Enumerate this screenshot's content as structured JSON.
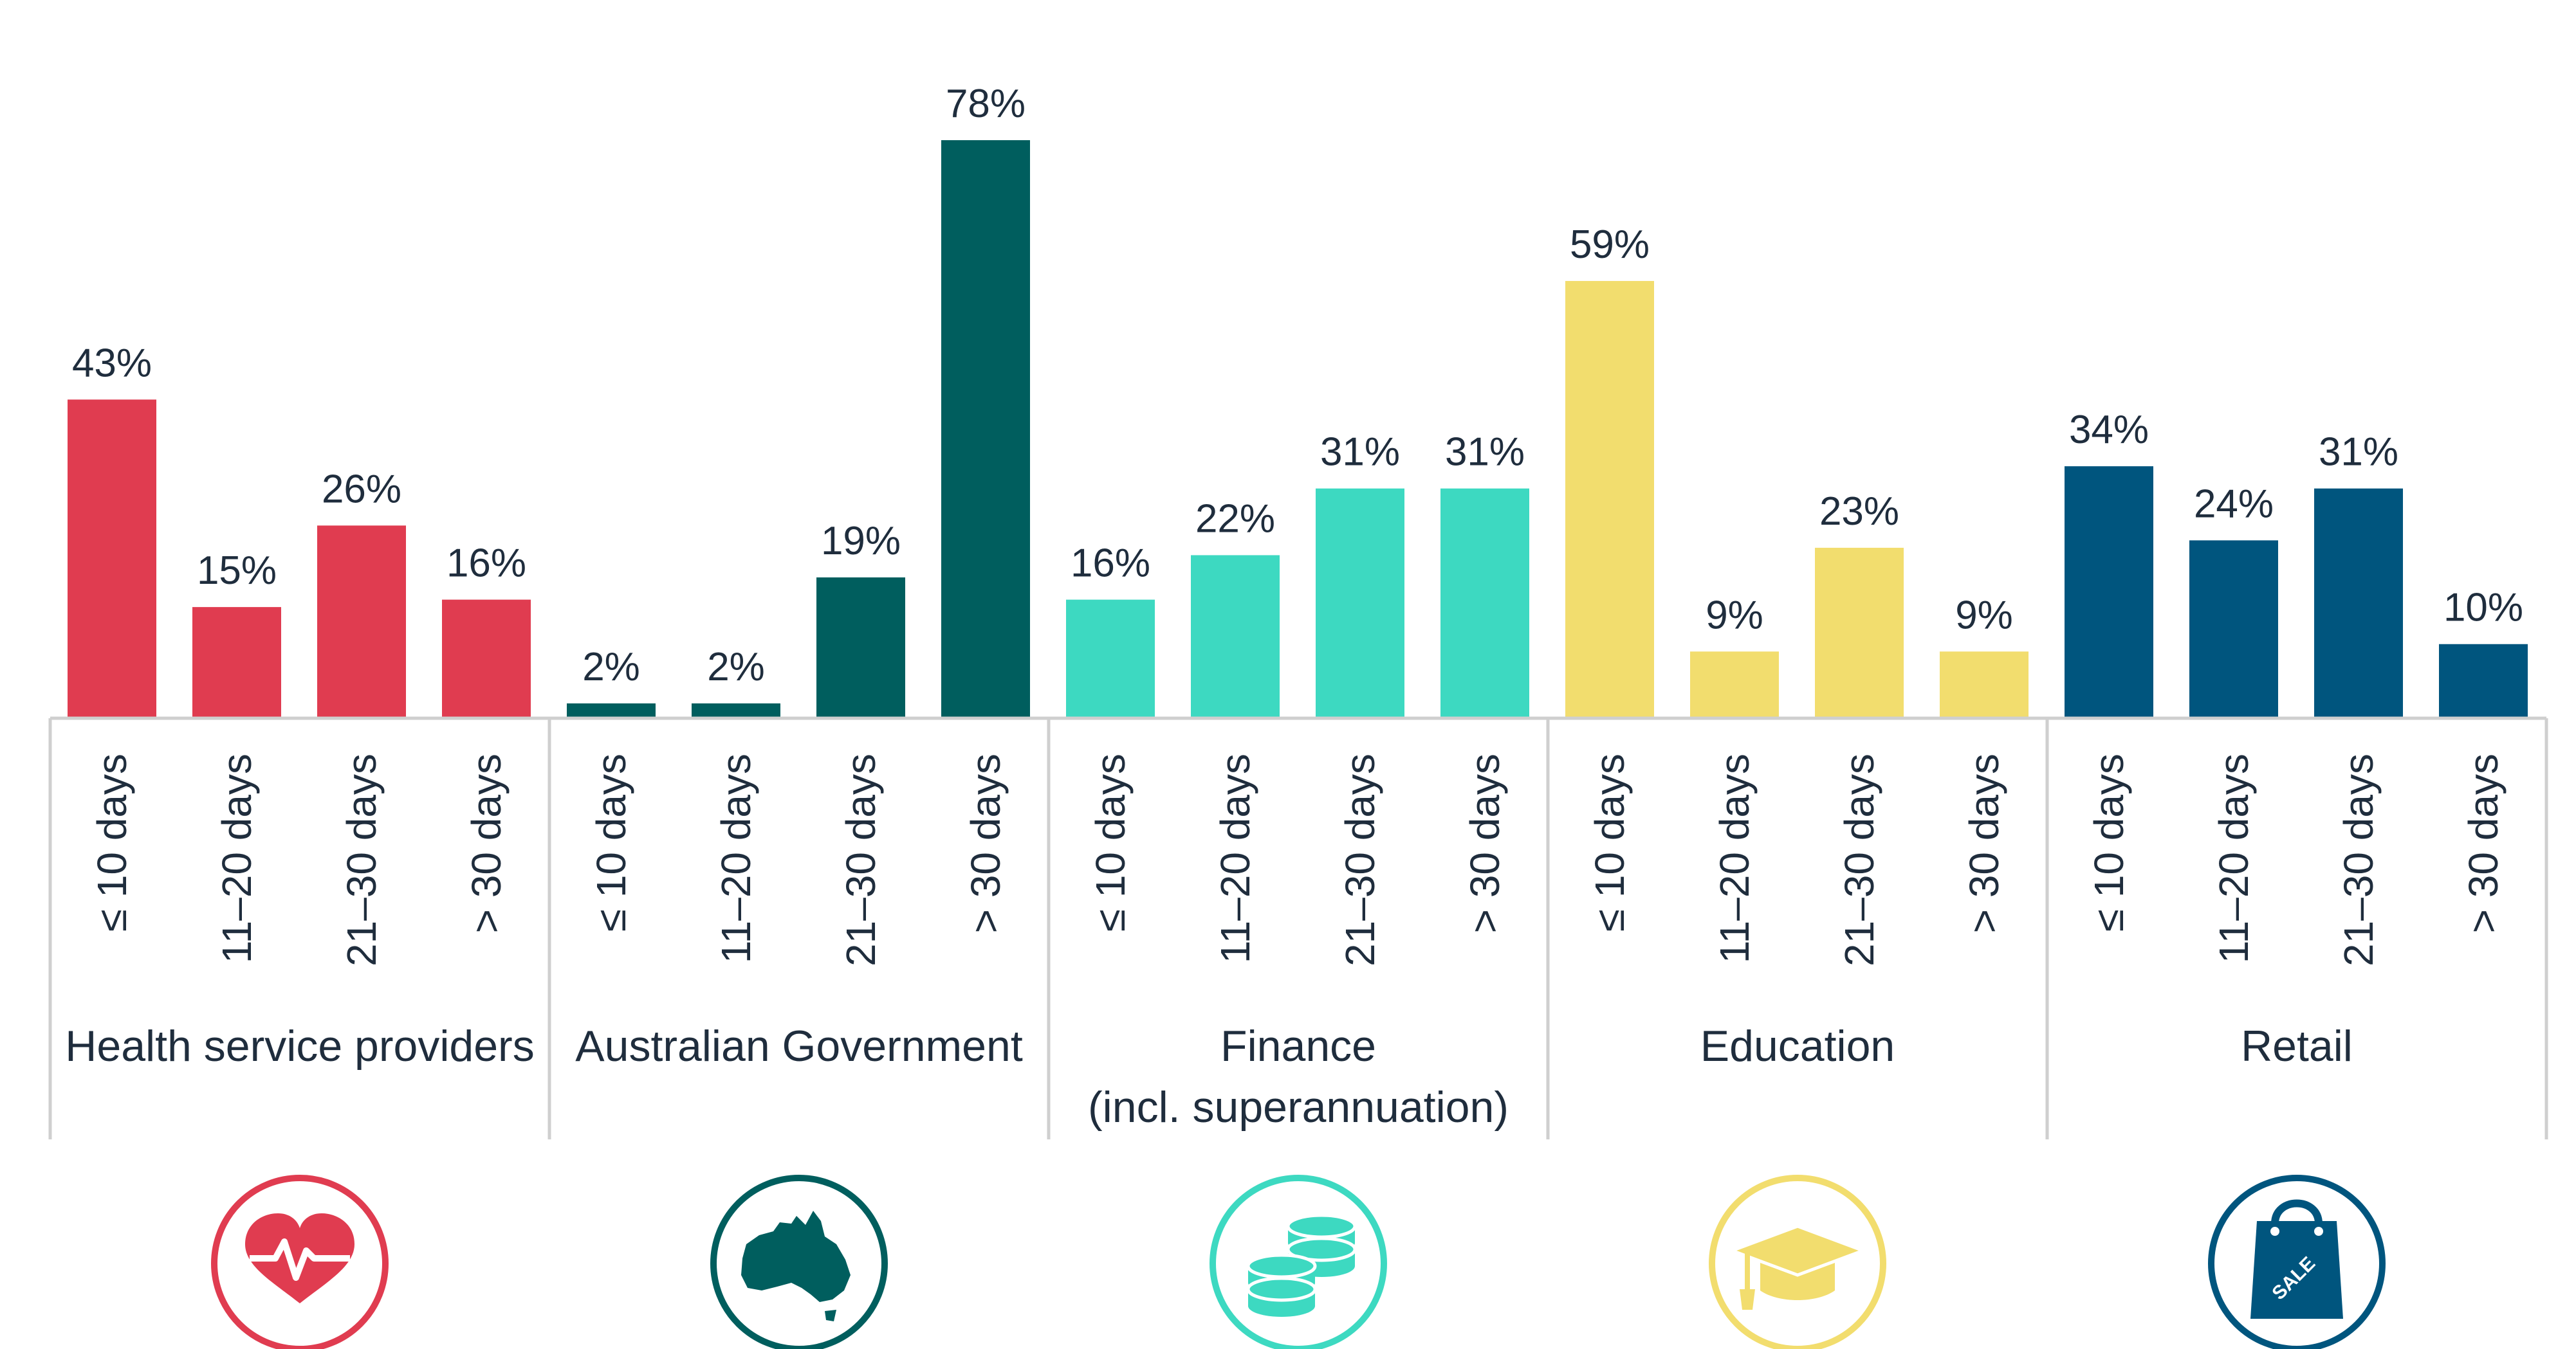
{
  "chart_data": {
    "type": "bar",
    "title": "",
    "xlabel": "",
    "ylabel": "",
    "ylim": [
      0,
      80
    ],
    "grid": false,
    "value_format": "{v}%",
    "categories": [
      "≤ 10 days",
      "11–20 days",
      "21–30 days",
      "> 30 days"
    ],
    "groups": [
      {
        "name": "Health service providers",
        "name_lines": [
          "Health service providers"
        ],
        "color": "#E03C50",
        "icon": "heart-pulse-icon",
        "values": [
          43,
          15,
          26,
          16
        ]
      },
      {
        "name": "Australian Government",
        "name_lines": [
          "Australian Government"
        ],
        "color": "#005E5E",
        "icon": "australia-map-icon",
        "values": [
          2,
          2,
          19,
          78
        ]
      },
      {
        "name": "Finance (incl. superannuation)",
        "name_lines": [
          "Finance",
          "(incl. superannuation)"
        ],
        "color": "#3DD9C1",
        "icon": "coins-icon",
        "values": [
          16,
          22,
          31,
          31
        ]
      },
      {
        "name": "Education",
        "name_lines": [
          "Education"
        ],
        "color": "#F2DD6E",
        "icon": "graduation-cap-icon",
        "values": [
          59,
          9,
          23,
          9
        ]
      },
      {
        "name": "Retail",
        "name_lines": [
          "Retail"
        ],
        "color": "#00557E",
        "icon": "shopping-bag-icon",
        "values": [
          34,
          24,
          31,
          10
        ]
      }
    ],
    "icon_text": {
      "retail": "SALE"
    }
  }
}
